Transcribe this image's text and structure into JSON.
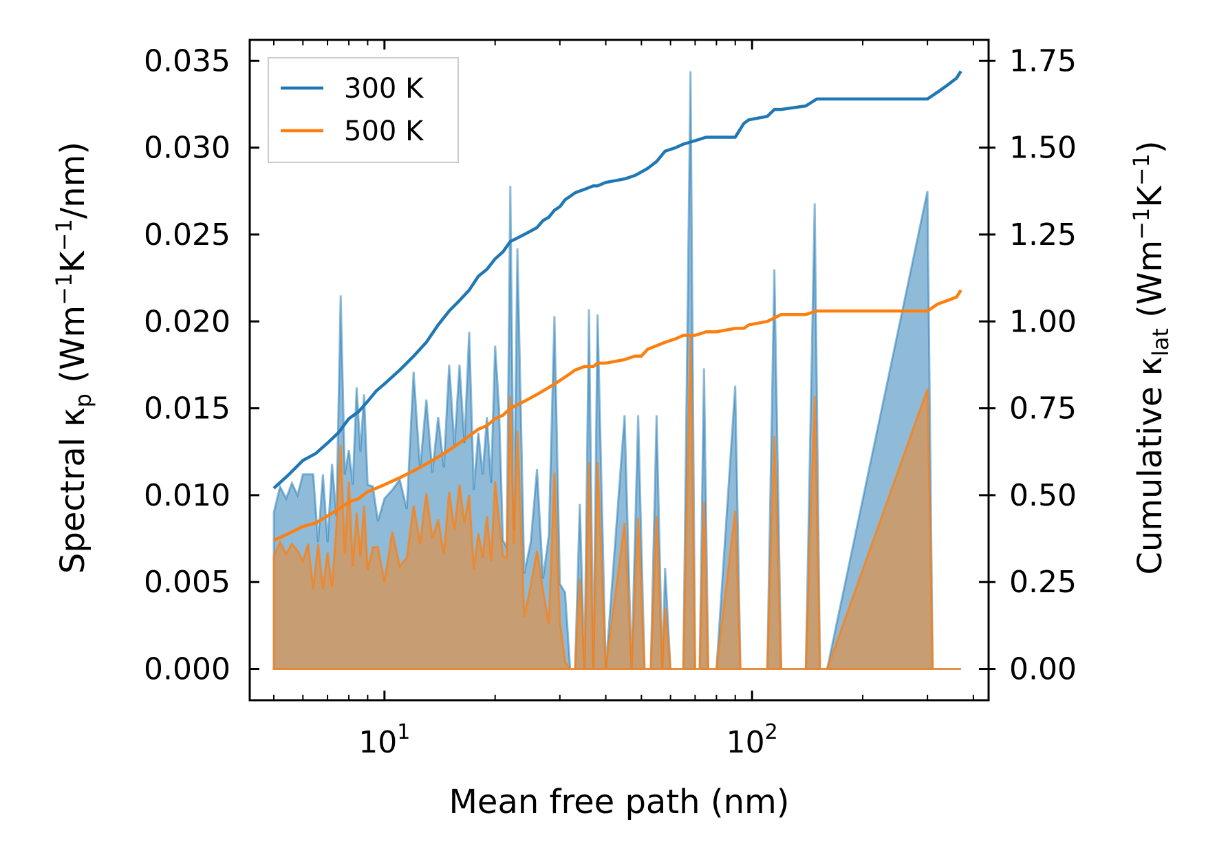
{
  "chart_data": {
    "type": "area",
    "xlabel": "Mean free path (nm)",
    "ylabel_left": {
      "main": "Spectral κ",
      "sub": "p",
      "unit_prefix": " (Wm",
      "exp1": "−1",
      "unit_mid": "K",
      "exp2": "−1",
      "unit_suffix": "/nm)"
    },
    "ylabel_right": {
      "main": "Cumulative κ",
      "sub": "lat",
      "unit_prefix": " (Wm",
      "exp1": "−1",
      "unit_mid": "K",
      "exp2": "−1",
      "unit_suffix": ")"
    },
    "x_scale": "log",
    "xlim": [
      4.3,
      440
    ],
    "x_ticks": [
      {
        "value": 10,
        "base": "10",
        "exp": "1"
      },
      {
        "value": 100,
        "base": "10",
        "exp": "2"
      }
    ],
    "ylim_left": [
      -0.0018,
      0.0362
    ],
    "yticks_left": [
      "0.000",
      "0.005",
      "0.010",
      "0.015",
      "0.020",
      "0.025",
      "0.030",
      "0.035"
    ],
    "ylim_right": [
      -0.09,
      1.81
    ],
    "yticks_right": [
      "0.00",
      "0.25",
      "0.50",
      "0.75",
      "1.00",
      "1.25",
      "1.50",
      "1.75"
    ],
    "legend": {
      "position": "top-left",
      "entries": [
        "300 K",
        "500 K"
      ]
    },
    "colors": {
      "s300": "#1f77b4",
      "s500": "#ff7f0e"
    },
    "spectral_300K": {
      "name": "300 K",
      "x": [
        5,
        5.2,
        5.4,
        5.6,
        5.8,
        6,
        6.2,
        6.4,
        6.6,
        6.8,
        7,
        7.2,
        7.4,
        7.6,
        7.8,
        8,
        8.2,
        8.4,
        8.6,
        8.8,
        9,
        9.3,
        9.6,
        10,
        10.5,
        11,
        11.5,
        12,
        12.5,
        13,
        13.5,
        14,
        14.5,
        15,
        15.5,
        16,
        16.5,
        17,
        17.5,
        18,
        18.5,
        19,
        19.5,
        20,
        20.5,
        21,
        21.5,
        22,
        22.5,
        23,
        24,
        25,
        26,
        27,
        28,
        29,
        30,
        31,
        32,
        33,
        34,
        35,
        36,
        37,
        38,
        40,
        45,
        47,
        49,
        51,
        53,
        55,
        57,
        58,
        60,
        63,
        65,
        68,
        70,
        72,
        74,
        76,
        80,
        90,
        93,
        96,
        99,
        110,
        115,
        120,
        140,
        148,
        153,
        160,
        300,
        310,
        320,
        330,
        340,
        350,
        360,
        370
      ],
      "y": [
        0.009,
        0.0105,
        0.0098,
        0.0107,
        0.01,
        0.0112,
        0.0112,
        0.0112,
        0.0073,
        0.0112,
        0.0073,
        0.0118,
        0.0088,
        0.0215,
        0.0112,
        0.0126,
        0.0106,
        0.0162,
        0.0125,
        0.0158,
        0.0106,
        0.0105,
        0.0085,
        0.0098,
        0.0103,
        0.0109,
        0.0092,
        0.0171,
        0.0115,
        0.0155,
        0.0113,
        0.0145,
        0.0116,
        0.0175,
        0.0128,
        0.0175,
        0.013,
        0.0194,
        0.0103,
        0.0136,
        0.0112,
        0.0145,
        0.0107,
        0.0186,
        0.015,
        0.0074,
        0.007,
        0.0278,
        0.008,
        0.0242,
        0.0055,
        0.0073,
        0.0115,
        0.0052,
        0.0077,
        0.0203,
        0.0049,
        0.0044,
        0.0,
        0.0,
        0.0095,
        0.0,
        0.0207,
        0.0,
        0.0204,
        0.0,
        0.0146,
        0.0,
        0.0146,
        0.0,
        0.0,
        0.0146,
        0.0,
        0.0058,
        0.0,
        0.0,
        0.0,
        0.0344,
        0.0,
        0.0,
        0.0173,
        0.0,
        0.0,
        0.0163,
        0.0,
        0.0,
        0.0,
        0.0,
        0.023,
        0.0,
        0.0,
        0.0268,
        0.0,
        0.0,
        0.0275,
        0.0,
        0.0,
        0.0,
        0.0,
        0.0,
        0.0,
        0.0
      ]
    },
    "spectral_500K": {
      "name": "500 K",
      "x": [
        5,
        5.2,
        5.4,
        5.6,
        5.8,
        6,
        6.2,
        6.4,
        6.6,
        6.8,
        7,
        7.2,
        7.4,
        7.6,
        7.8,
        8,
        8.2,
        8.4,
        8.6,
        8.8,
        9,
        9.3,
        9.6,
        10,
        10.5,
        11,
        11.5,
        12,
        12.5,
        13,
        13.5,
        14,
        14.5,
        15,
        15.5,
        16,
        16.5,
        17,
        17.5,
        18,
        18.5,
        19,
        19.5,
        20,
        20.5,
        21,
        21.5,
        22,
        22.5,
        23,
        24,
        25,
        26,
        27,
        28,
        29,
        30,
        31,
        32,
        33,
        34,
        35,
        36,
        37,
        38,
        40,
        45,
        47,
        49,
        51,
        53,
        55,
        57,
        58,
        60,
        63,
        65,
        68,
        70,
        72,
        74,
        76,
        80,
        90,
        93,
        96,
        99,
        110,
        115,
        120,
        140,
        148,
        153,
        160,
        300,
        310,
        320,
        330,
        340,
        350,
        360,
        370
      ],
      "y": [
        0.0065,
        0.0073,
        0.0066,
        0.0072,
        0.0068,
        0.0062,
        0.0072,
        0.0046,
        0.0072,
        0.0046,
        0.0067,
        0.0047,
        0.0082,
        0.0129,
        0.0066,
        0.0108,
        0.0059,
        0.009,
        0.0065,
        0.0094,
        0.0057,
        0.007,
        0.007,
        0.005,
        0.0079,
        0.0059,
        0.0064,
        0.0094,
        0.0072,
        0.0101,
        0.0075,
        0.0086,
        0.0066,
        0.0102,
        0.008,
        0.0106,
        0.0084,
        0.01,
        0.0057,
        0.0078,
        0.0064,
        0.0088,
        0.0062,
        0.0108,
        0.0085,
        0.0065,
        0.0064,
        0.0157,
        0.0072,
        0.0137,
        0.003,
        0.0048,
        0.0068,
        0.0045,
        0.0026,
        0.0113,
        0.0027,
        0.0004,
        0.0,
        0.0,
        0.0052,
        0.0,
        0.0119,
        0.0,
        0.0119,
        0.0,
        0.0084,
        0.0,
        0.0087,
        0.0,
        0.0,
        0.0088,
        0.0,
        0.0035,
        0.0,
        0.0,
        0.0,
        0.0192,
        0.0,
        0.0,
        0.0096,
        0.0,
        0.0,
        0.0091,
        0.0,
        0.0,
        0.0,
        0.0,
        0.0134,
        0.0,
        0.0,
        0.0157,
        0.0,
        0.0,
        0.0161,
        0.0,
        0.0,
        0.0,
        0.0,
        0.0,
        0.0,
        0.0
      ]
    },
    "cumulative_300K": {
      "name": "300 K",
      "x": [
        5,
        5.5,
        6,
        6.5,
        7,
        7.5,
        8,
        8.5,
        9,
        9.5,
        10,
        11,
        12,
        13,
        14,
        15,
        16,
        17,
        18,
        19,
        20,
        21,
        22,
        23,
        24,
        25,
        26,
        27,
        28,
        29,
        30,
        31,
        32,
        33,
        35,
        37,
        38,
        40,
        45,
        48,
        50,
        52,
        55,
        58,
        62,
        65,
        70,
        75,
        80,
        90,
        95,
        98,
        110,
        115,
        120,
        140,
        150,
        200,
        300,
        320,
        340,
        360,
        370
      ],
      "y": [
        0.52,
        0.56,
        0.6,
        0.62,
        0.65,
        0.68,
        0.72,
        0.74,
        0.77,
        0.8,
        0.82,
        0.86,
        0.9,
        0.94,
        0.99,
        1.03,
        1.06,
        1.09,
        1.13,
        1.15,
        1.18,
        1.2,
        1.23,
        1.24,
        1.25,
        1.26,
        1.27,
        1.29,
        1.3,
        1.32,
        1.33,
        1.35,
        1.36,
        1.37,
        1.38,
        1.39,
        1.39,
        1.4,
        1.41,
        1.42,
        1.43,
        1.44,
        1.46,
        1.49,
        1.5,
        1.51,
        1.52,
        1.53,
        1.53,
        1.53,
        1.57,
        1.58,
        1.59,
        1.61,
        1.61,
        1.62,
        1.64,
        1.64,
        1.64,
        1.66,
        1.68,
        1.7,
        1.72
      ]
    },
    "cumulative_500K": {
      "name": "500 K",
      "x": [
        5,
        5.5,
        6,
        6.5,
        7,
        7.5,
        8,
        8.5,
        9,
        9.5,
        10,
        11,
        12,
        13,
        14,
        15,
        16,
        17,
        18,
        19,
        20,
        21,
        22,
        23,
        24,
        25,
        26,
        27,
        28,
        29,
        30,
        31,
        32,
        33,
        35,
        37,
        38,
        40,
        45,
        48,
        50,
        52,
        55,
        58,
        62,
        65,
        70,
        75,
        80,
        90,
        95,
        98,
        110,
        115,
        120,
        140,
        150,
        200,
        300,
        320,
        340,
        360,
        370
      ],
      "y": [
        0.37,
        0.39,
        0.41,
        0.42,
        0.44,
        0.46,
        0.48,
        0.49,
        0.51,
        0.52,
        0.53,
        0.55,
        0.57,
        0.59,
        0.61,
        0.63,
        0.65,
        0.67,
        0.69,
        0.7,
        0.72,
        0.73,
        0.75,
        0.76,
        0.77,
        0.78,
        0.79,
        0.8,
        0.81,
        0.82,
        0.83,
        0.84,
        0.85,
        0.86,
        0.87,
        0.87,
        0.88,
        0.88,
        0.89,
        0.9,
        0.9,
        0.92,
        0.93,
        0.94,
        0.95,
        0.96,
        0.96,
        0.97,
        0.97,
        0.98,
        0.98,
        0.99,
        1.0,
        1.01,
        1.02,
        1.02,
        1.03,
        1.03,
        1.03,
        1.05,
        1.06,
        1.07,
        1.09
      ]
    }
  }
}
